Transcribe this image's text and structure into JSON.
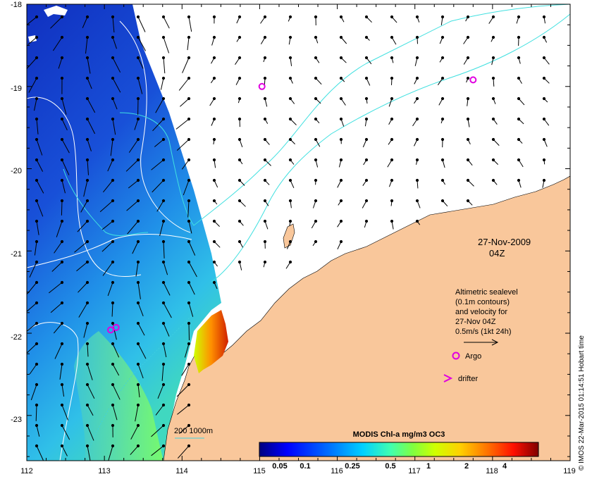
{
  "map": {
    "lon_range": [
      112,
      119
    ],
    "lat_range": [
      -23.55,
      -18
    ],
    "x_ticks": [
      "112",
      "113",
      "114",
      "115",
      "116",
      "117",
      "118",
      "119"
    ],
    "y_ticks": [
      "-18",
      "-19",
      "-20",
      "-21",
      "-22",
      "-23"
    ],
    "date_line1": "27-Nov-2009",
    "date_line2": "04Z",
    "land_color": "#f9c79b",
    "ocean_no_data_color": "#ffffff"
  },
  "legend": {
    "altimetric_lines": [
      "Altimetric sealevel",
      "(0.1m contours)",
      "and velocity for",
      "27-Nov 04Z",
      "0.5m/s (1kt 24h)"
    ],
    "argo_label": "Argo",
    "drifter_label": "drifter",
    "argo_color": "#e000e0",
    "isobath_label": "200  1000m",
    "isobath_color": "#40d0e0"
  },
  "colorbar": {
    "title": "MODIS Chl-a mg/m3 OC3",
    "ticks": [
      "0.05",
      "0.1",
      "0.25",
      "0.5",
      "1",
      "2",
      "4"
    ],
    "colors": [
      "#00007f",
      "#0000ff",
      "#0070ff",
      "#00d0ff",
      "#40ffb0",
      "#80ff40",
      "#d0ff00",
      "#ffd000",
      "#ff7000",
      "#ff1000",
      "#7f0000"
    ]
  },
  "credit": "© IMOS 22-Mar-2015 01:14:51 Hobart time",
  "argo_floats": [
    {
      "lon": 115.03,
      "lat": -19.0
    },
    {
      "lon": 117.75,
      "lat": -18.92
    },
    {
      "lon": 113.08,
      "lat": -21.96
    },
    {
      "lon": 113.15,
      "lat": -21.93
    }
  ]
}
